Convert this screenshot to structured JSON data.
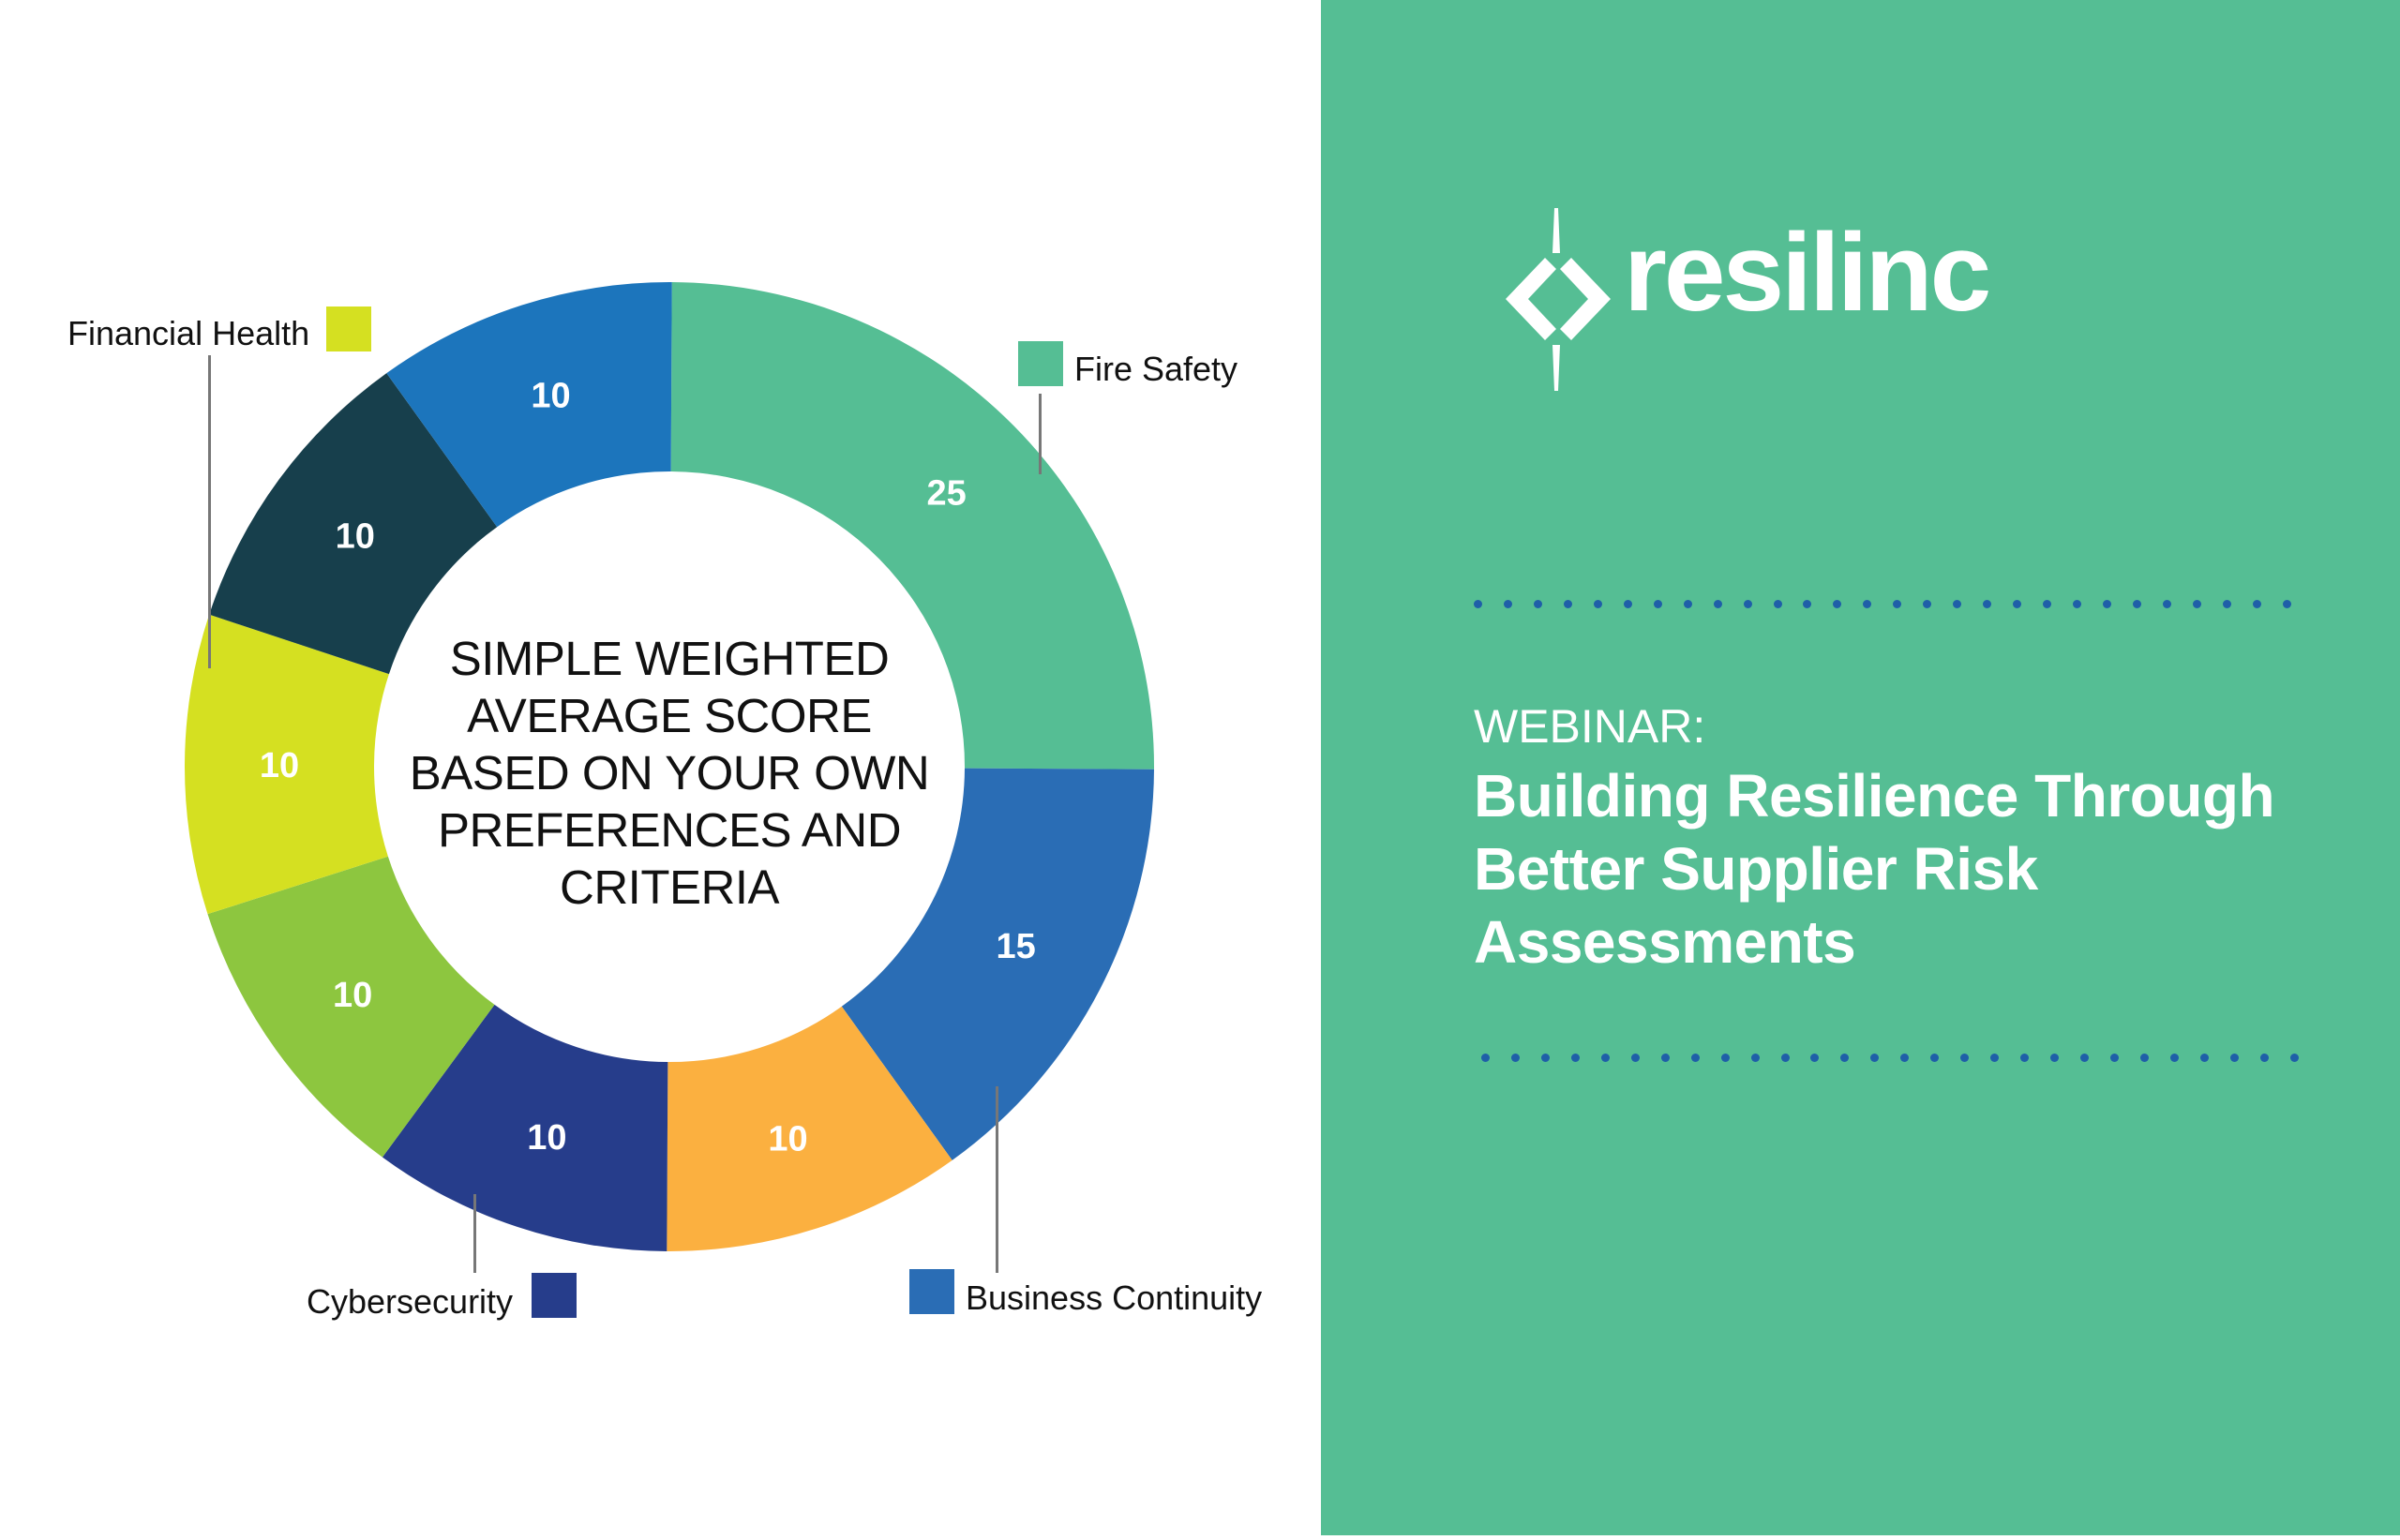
{
  "chart_data": {
    "type": "pie",
    "variant": "donut",
    "center_label_lines": [
      "SIMPLE WEIGHTED",
      "AVERAGE SCORE",
      "BASED ON YOUR OWN",
      "PREFERENCES AND",
      "CRITERIA"
    ],
    "slices": [
      {
        "value": 25,
        "color": "#55BE94",
        "name": "Fire Safety"
      },
      {
        "value": 15,
        "color": "#2A6DB5",
        "name": "Business Continuity"
      },
      {
        "value": 10,
        "color": "#FBB040"
      },
      {
        "value": 10,
        "color": "#263D8B",
        "name": "Cybersecurity"
      },
      {
        "value": 10,
        "color": "#8DC63F"
      },
      {
        "value": 10,
        "color": "#D5E021",
        "name": "Financial Health"
      },
      {
        "value": 10,
        "color": "#173F4C"
      },
      {
        "value": 10,
        "color": "#1C75BC"
      }
    ],
    "legend": [
      {
        "label": "Financial Health",
        "color": "#D5E021"
      },
      {
        "label": "Fire Safety",
        "color": "#55BE94"
      },
      {
        "label": "Cybersecurity",
        "color": "#263D8B"
      },
      {
        "label": "Business Continuity",
        "color": "#2A6DB5"
      }
    ]
  },
  "panel": {
    "background": "#55BE94",
    "logo_text": "resilinc",
    "eyebrow": "WEBINAR:",
    "title_lines": [
      "Building Resilience Through",
      "Better Supplier Risk",
      "Assessments"
    ],
    "dot_color": "#1F5FA8"
  }
}
